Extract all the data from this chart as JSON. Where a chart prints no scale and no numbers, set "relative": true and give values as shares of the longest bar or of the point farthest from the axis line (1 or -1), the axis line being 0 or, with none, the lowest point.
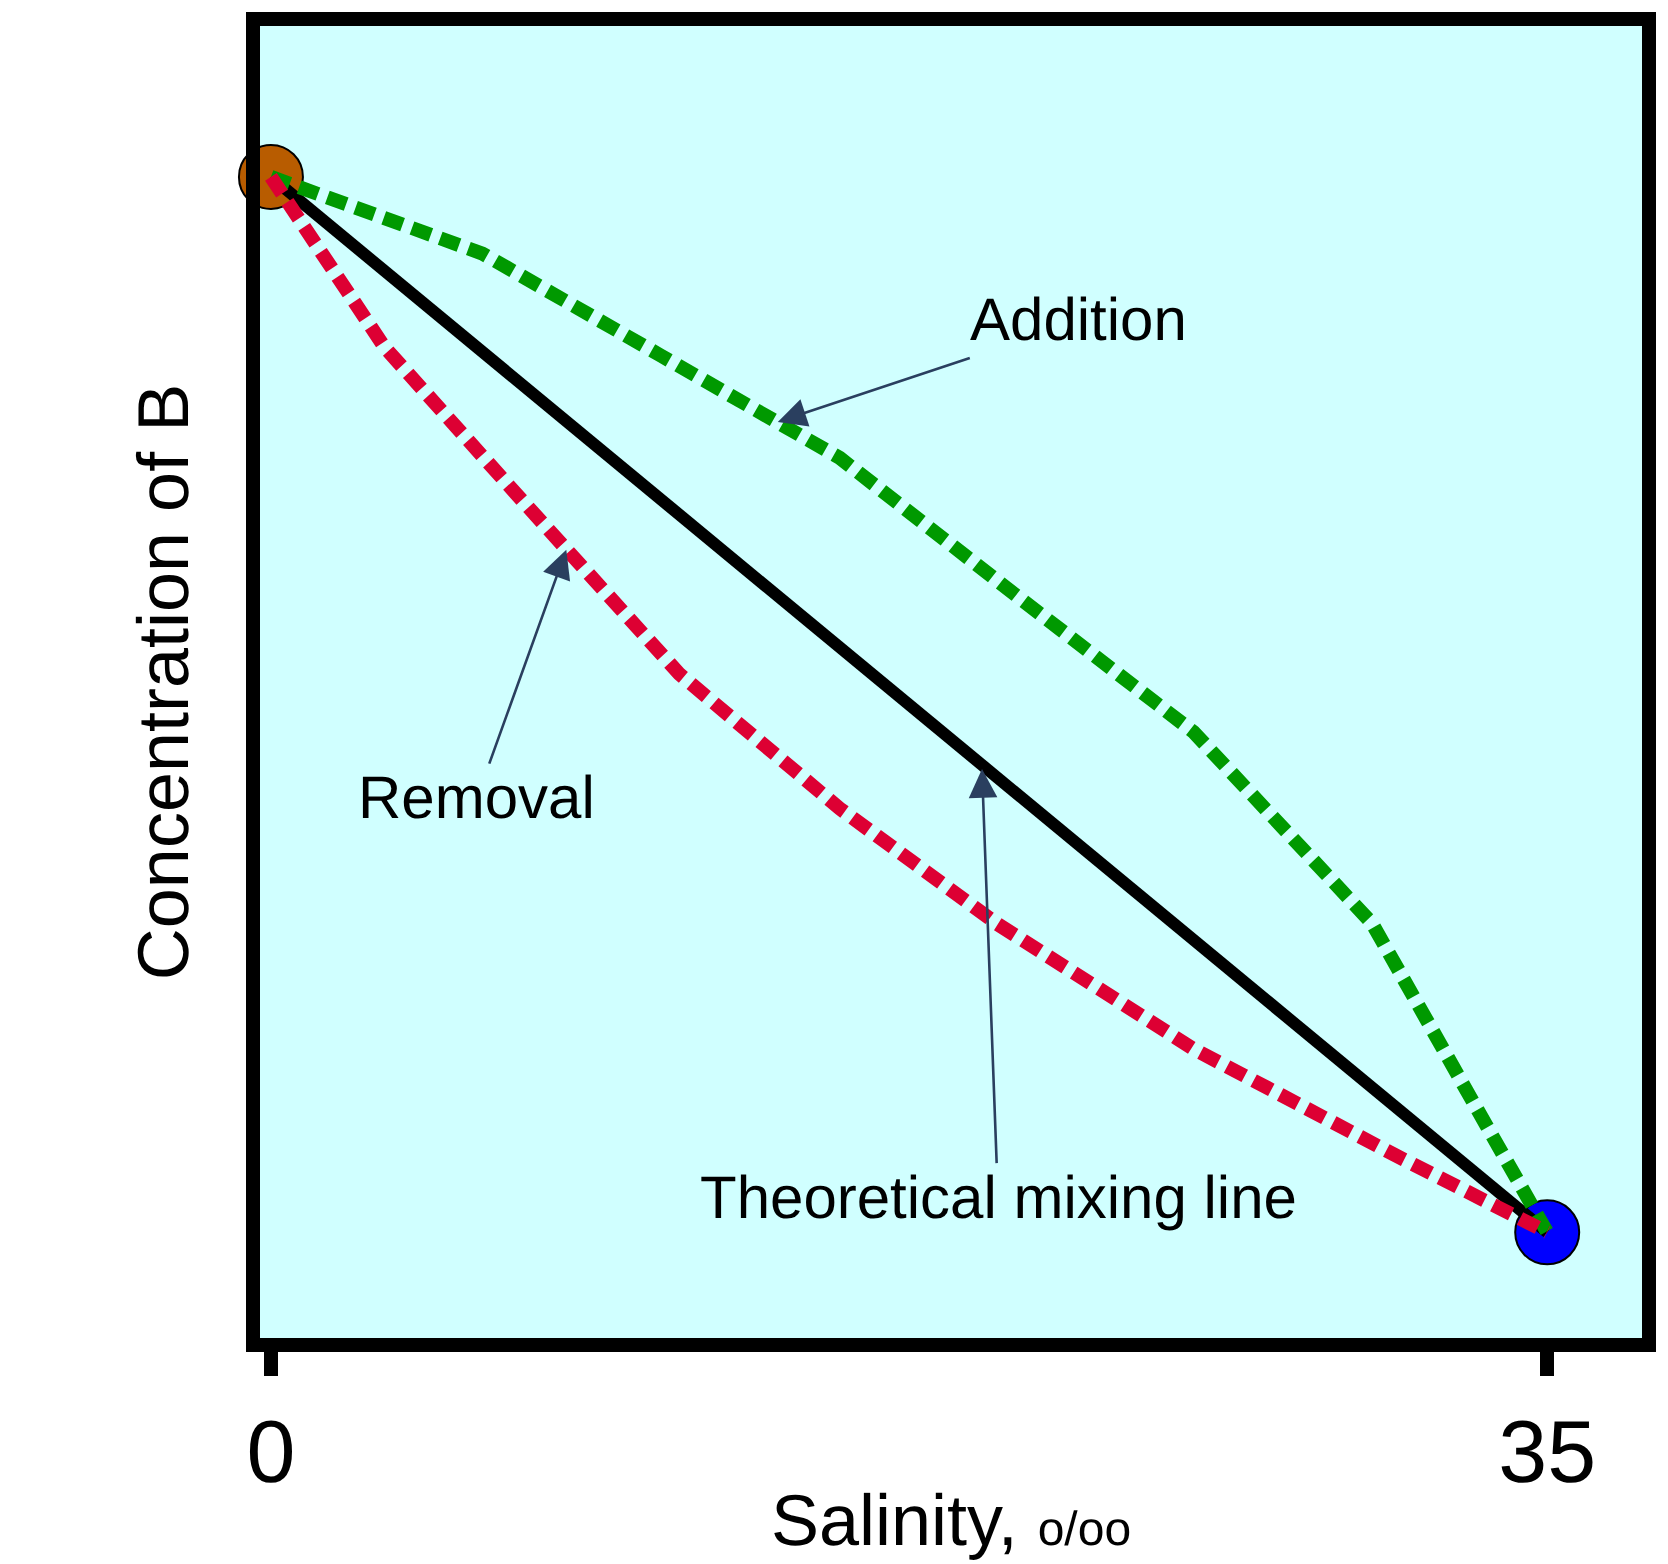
{
  "chart_data": {
    "type": "line",
    "relative": true,
    "xlabel": "Salinity, o/oo",
    "ylabel": "Concentration of B",
    "xlim": [
      -0.3,
      37.6
    ],
    "xticks": [
      0,
      35
    ],
    "grid": false,
    "series": [
      {
        "color": "#000000",
        "line_style": "solid",
        "marker": "none",
        "x": [
          0,
          35
        ],
        "values": [
          1,
          0.091
        ]
      },
      {
        "color": "#009900",
        "line_style": "dashed",
        "marker": "none",
        "x": [
          0,
          5.8,
          10.7,
          15.6,
          20.5,
          25.3,
          30.2,
          32.9,
          35
        ],
        "values": [
          1,
          0.934,
          0.846,
          0.758,
          0.638,
          0.522,
          0.357,
          0.207,
          0.091
        ]
      },
      {
        "color": "#dd0033",
        "line_style": "dashed",
        "marker": "none",
        "x": [
          0,
          3.1,
          6.9,
          11.2,
          15.6,
          19.9,
          25.3,
          30.8,
          35
        ],
        "values": [
          1,
          0.854,
          0.721,
          0.572,
          0.456,
          0.357,
          0.249,
          0.158,
          0.091
        ]
      },
      {
        "type": "scatter",
        "marker": "circle",
        "x": [
          0
        ],
        "values": [
          1
        ],
        "color": "#b85c00"
      },
      {
        "type": "scatter",
        "marker": "circle",
        "x": [
          35
        ],
        "values": [
          0.091
        ],
        "color": "#0000ff"
      }
    ],
    "annotations": [
      {
        "text": "Addition",
        "x": 13.9,
        "y": 0.789
      },
      {
        "text": "Removal",
        "x": 8.1,
        "y": 0.679
      },
      {
        "text": "Theoretical mixing line",
        "x": 19.5,
        "y": 0.49
      }
    ]
  }
}
